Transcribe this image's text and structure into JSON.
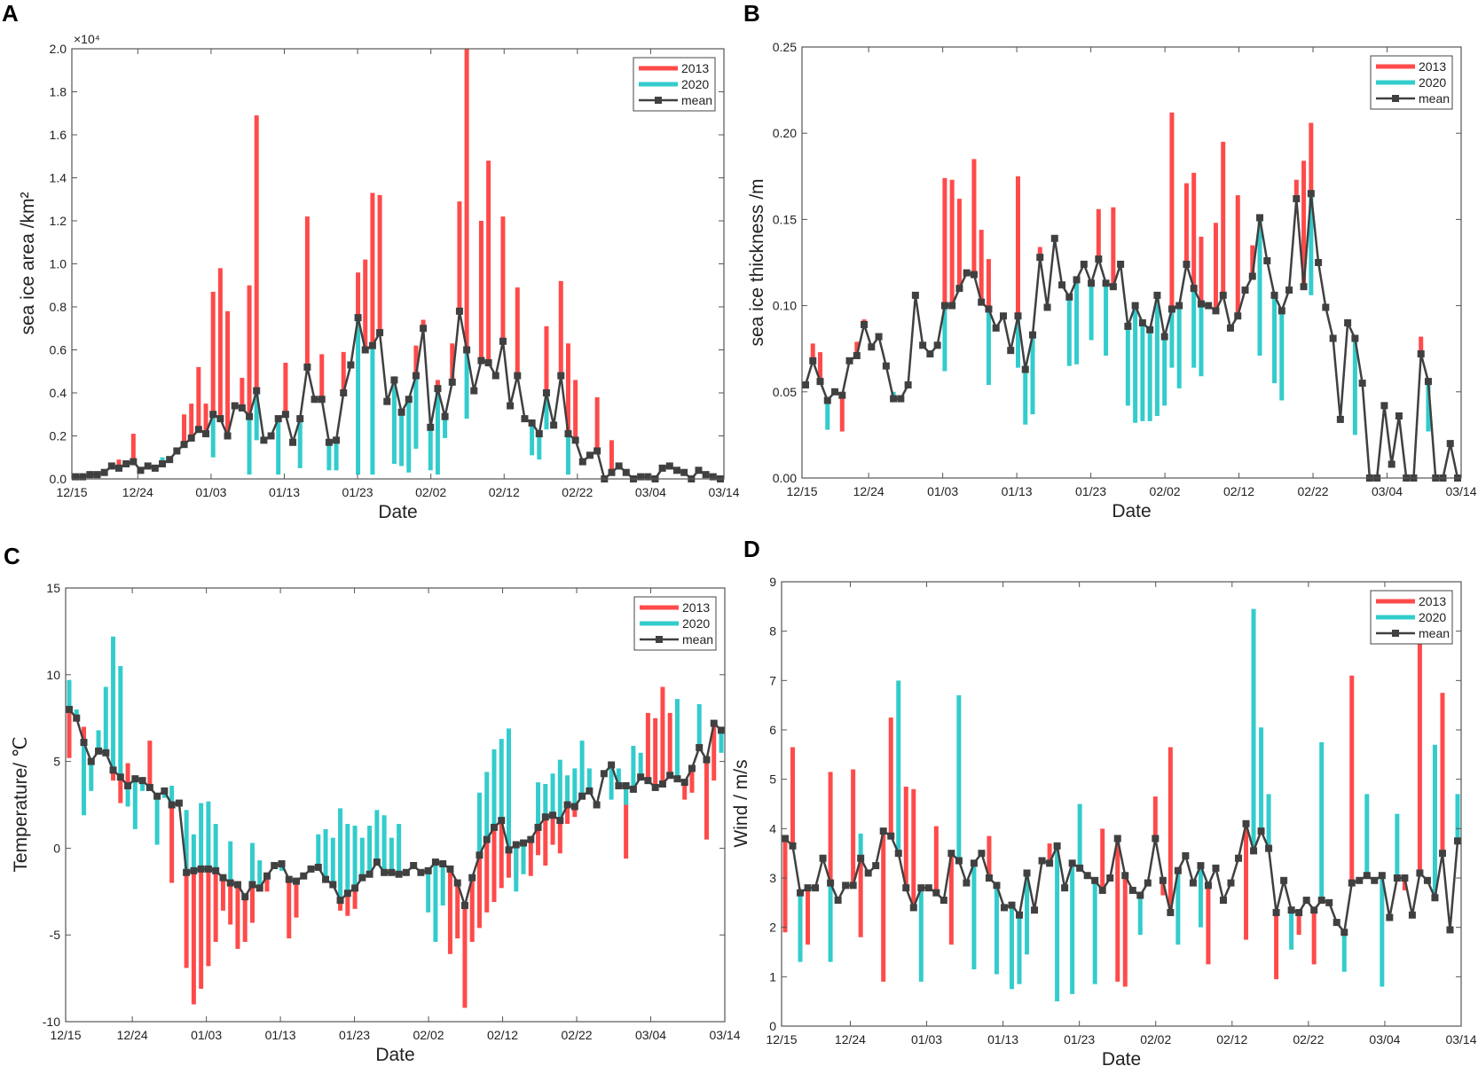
{
  "colors": {
    "y2013": "#ff4a4a",
    "y2020": "#33cccc",
    "mean": "#404040"
  },
  "chart_data": [
    {
      "panel": "A",
      "type": "bar+line",
      "title": "",
      "xlabel": "Date",
      "ylabel": "sea ice area /km²",
      "exponent_label": "×10⁴",
      "ylim": [
        0,
        2.0
      ],
      "yticks": [
        0,
        0.2,
        0.4,
        0.6,
        0.8,
        1.0,
        1.2,
        1.4,
        1.6,
        1.8,
        2.0
      ],
      "ytick_labels": [
        "0.0",
        "0.2",
        "0.4",
        "0.6",
        "0.8",
        "1.0",
        "1.2",
        "1.4",
        "1.6",
        "1.8",
        "2.0"
      ],
      "xtick_labels": [
        "12/15",
        "12/24",
        "01/03",
        "01/13",
        "01/23",
        "02/02",
        "02/12",
        "02/22",
        "03/04",
        "03/14"
      ],
      "xtick_days": [
        0,
        9,
        19,
        29,
        39,
        49,
        59,
        69,
        79,
        89
      ],
      "legend": [
        "2013",
        "2020",
        "mean"
      ],
      "legend_position": "top-right",
      "mean": [
        0.01,
        0.01,
        0.02,
        0.02,
        0.03,
        0.06,
        0.05,
        0.07,
        0.08,
        0.04,
        0.06,
        0.05,
        0.07,
        0.09,
        0.13,
        0.16,
        0.19,
        0.23,
        0.21,
        0.3,
        0.28,
        0.2,
        0.34,
        0.33,
        0.29,
        0.41,
        0.18,
        0.2,
        0.28,
        0.3,
        0.17,
        0.28,
        0.52,
        0.37,
        0.37,
        0.17,
        0.18,
        0.4,
        0.53,
        0.75,
        0.6,
        0.62,
        0.68,
        0.36,
        0.46,
        0.31,
        0.37,
        0.48,
        0.7,
        0.24,
        0.42,
        0.29,
        0.45,
        0.78,
        0.6,
        0.41,
        0.55,
        0.54,
        0.48,
        0.64,
        0.34,
        0.48,
        0.28,
        0.26,
        0.21,
        0.4,
        0.25,
        0.48,
        0.21,
        0.18,
        0.08,
        0.11,
        0.13,
        0.0,
        0.03,
        0.06,
        0.03,
        0.0,
        0.01,
        0.01,
        0.0,
        0.05,
        0.06,
        0.04,
        0.03,
        0.0,
        0.04,
        0.02,
        0.01,
        0.0
      ],
      "y2013": {
        "6": 0.09,
        "8": 0.21,
        "15": 0.3,
        "16": 0.35,
        "17": 0.52,
        "18": 0.35,
        "19": 0.87,
        "20": 0.98,
        "21": 0.78,
        "23": 0.47,
        "24": 0.9,
        "25": 1.69,
        "29": 0.54,
        "32": 1.22,
        "34": 0.58,
        "37": 0.59,
        "39": 0.96,
        "40": 1.02,
        "41": 1.33,
        "42": 1.32,
        "47": 0.62,
        "48": 0.74,
        "50": 0.46,
        "52": 0.63,
        "53": 1.29,
        "54": 2.0,
        "56": 1.2,
        "57": 1.48,
        "59": 1.22,
        "61": 0.89,
        "65": 0.71,
        "67": 0.92,
        "68": 0.63,
        "69": 0.46,
        "72": 0.38,
        "74": 0.18
      },
      "y2020": {
        "12": 0.1,
        "19": 0.1,
        "24": 0.02,
        "25": 0.18,
        "28": 0.02,
        "31": 0.05,
        "35": 0.04,
        "36": 0.04,
        "39": 0.02,
        "41": 0.02,
        "44": 0.07,
        "45": 0.06,
        "46": 0.03,
        "47": 0.14,
        "49": 0.04,
        "50": 0.02,
        "51": 0.19,
        "54": 0.28,
        "63": 0.11,
        "64": 0.09,
        "65": 0.23,
        "68": 0.02
      }
    },
    {
      "panel": "B",
      "type": "bar+line",
      "title": "",
      "xlabel": "Date",
      "ylabel": "sea ice thickness /m",
      "ylim": [
        0,
        0.25
      ],
      "yticks": [
        0,
        0.05,
        0.1,
        0.15,
        0.2,
        0.25
      ],
      "ytick_labels": [
        "0.00",
        "0.05",
        "0.10",
        "0.15",
        "0.20",
        "0.25"
      ],
      "xtick_labels": [
        "12/15",
        "12/24",
        "01/03",
        "01/13",
        "01/23",
        "02/02",
        "02/12",
        "02/22",
        "03/04",
        "03/14"
      ],
      "xtick_days": [
        0,
        9,
        19,
        29,
        39,
        49,
        59,
        69,
        79,
        89
      ],
      "legend": [
        "2013",
        "2020",
        "mean"
      ],
      "legend_position": "top-right",
      "mean": [
        0.054,
        0.068,
        0.056,
        0.045,
        0.05,
        0.048,
        0.068,
        0.071,
        0.089,
        0.076,
        0.082,
        0.065,
        0.046,
        0.046,
        0.054,
        0.106,
        0.077,
        0.072,
        0.077,
        0.1,
        0.1,
        0.11,
        0.119,
        0.118,
        0.102,
        0.098,
        0.087,
        0.094,
        0.074,
        0.094,
        0.063,
        0.083,
        0.128,
        0.099,
        0.139,
        0.112,
        0.105,
        0.115,
        0.124,
        0.113,
        0.127,
        0.113,
        0.111,
        0.124,
        0.088,
        0.1,
        0.09,
        0.086,
        0.106,
        0.082,
        0.098,
        0.1,
        0.124,
        0.11,
        0.101,
        0.1,
        0.097,
        0.106,
        0.087,
        0.094,
        0.109,
        0.117,
        0.151,
        0.126,
        0.106,
        0.097,
        0.109,
        0.162,
        0.111,
        0.165,
        0.125,
        0.099,
        0.081,
        0.034,
        0.09,
        0.081,
        0.055,
        0.0,
        0.0,
        0.042,
        0.008,
        0.036,
        0.0,
        0.0,
        0.072,
        0.056,
        0.0,
        0.0,
        0.02,
        0.0
      ],
      "y2013": {
        "1": 0.078,
        "2": 0.073,
        "5": 0.027,
        "7": 0.079,
        "8": 0.092,
        "19": 0.174,
        "20": 0.173,
        "21": 0.162,
        "23": 0.185,
        "24": 0.144,
        "25": 0.127,
        "29": 0.175,
        "32": 0.134,
        "40": 0.156,
        "42": 0.157,
        "50": 0.212,
        "52": 0.171,
        "53": 0.177,
        "54": 0.14,
        "56": 0.148,
        "57": 0.195,
        "59": 0.164,
        "61": 0.135,
        "67": 0.173,
        "68": 0.184,
        "69": 0.206,
        "84": 0.082
      },
      "y2020": {
        "3": 0.028,
        "12": 0.05,
        "19": 0.062,
        "25": 0.054,
        "29": 0.064,
        "30": 0.031,
        "31": 0.037,
        "36": 0.065,
        "37": 0.066,
        "39": 0.08,
        "41": 0.071,
        "44": 0.042,
        "45": 0.032,
        "46": 0.033,
        "47": 0.033,
        "48": 0.036,
        "49": 0.042,
        "50": 0.064,
        "51": 0.052,
        "53": 0.064,
        "54": 0.059,
        "62": 0.071,
        "64": 0.055,
        "65": 0.045,
        "69": 0.106,
        "75": 0.025,
        "85": 0.027
      }
    },
    {
      "panel": "C",
      "type": "bar+line",
      "title": "",
      "xlabel": "Date",
      "ylabel": "Temperature/ ℃",
      "ylim": [
        -10,
        15
      ],
      "yticks": [
        -10,
        -5,
        0,
        5,
        10,
        15
      ],
      "ytick_labels": [
        "-10",
        "-5",
        "0",
        "5",
        "10",
        "15"
      ],
      "xtick_labels": [
        "12/15",
        "12/24",
        "01/03",
        "01/13",
        "01/23",
        "02/02",
        "02/12",
        "02/22",
        "03/04",
        "03/14"
      ],
      "xtick_days": [
        0,
        9,
        19,
        29,
        39,
        49,
        59,
        69,
        79,
        89
      ],
      "legend": [
        "2013",
        "2020",
        "mean"
      ],
      "legend_position": "top-right",
      "mean": [
        8.0,
        7.5,
        6.1,
        5.0,
        5.6,
        5.5,
        4.5,
        4.1,
        3.6,
        4.0,
        3.9,
        3.5,
        3.0,
        3.3,
        2.5,
        2.6,
        -1.4,
        -1.3,
        -1.2,
        -1.2,
        -1.3,
        -1.7,
        -2.0,
        -2.1,
        -2.8,
        -2.1,
        -2.3,
        -1.6,
        -1.0,
        -0.9,
        -1.8,
        -1.9,
        -1.6,
        -1.2,
        -1.1,
        -1.8,
        -2.1,
        -3.0,
        -2.6,
        -2.3,
        -1.7,
        -1.5,
        -0.8,
        -1.4,
        -1.4,
        -1.5,
        -1.4,
        -1.0,
        -1.4,
        -1.3,
        -0.8,
        -0.9,
        -1.2,
        -2.0,
        -3.3,
        -1.7,
        -0.4,
        0.5,
        1.2,
        1.6,
        -0.1,
        0.2,
        0.3,
        0.5,
        1.2,
        1.8,
        1.9,
        1.6,
        2.5,
        2.4,
        3.0,
        3.3,
        2.5,
        4.3,
        4.8,
        3.6,
        3.6,
        3.4,
        4.1,
        3.9,
        3.5,
        3.7,
        4.2,
        4.0,
        3.8,
        4.6,
        5.8,
        5.1,
        7.2,
        6.8
      ],
      "y2013": {
        "0": 5.2,
        "2": 7.0,
        "6": 3.9,
        "7": 2.6,
        "8": 4.9,
        "11": 6.2,
        "14": -2.0,
        "16": -6.9,
        "17": -9.0,
        "18": -8.1,
        "19": -6.8,
        "20": -5.4,
        "21": -3.6,
        "22": -4.4,
        "23": -5.8,
        "24": -5.4,
        "25": -4.3,
        "27": -2.5,
        "30": -5.2,
        "31": -4.0,
        "37": -3.6,
        "38": -3.9,
        "39": -3.5,
        "52": -6.1,
        "53": -5.2,
        "54": -9.2,
        "55": -5.4,
        "56": -4.6,
        "57": -3.7,
        "58": -3.1,
        "59": -2.3,
        "60": -1.7,
        "61": -1.8,
        "62": -1.3,
        "63": -1.6,
        "64": -0.4,
        "65": -1.0,
        "66": 0.2,
        "67": -0.3,
        "68": 1.4,
        "69": 1.8,
        "76": -0.6,
        "79": 7.8,
        "80": 7.5,
        "81": 9.3,
        "82": 7.8,
        "84": 2.8,
        "85": 3.2,
        "87": 0.5,
        "88": 3.9
      },
      "y2020": {
        "0": 9.7,
        "1": 8.0,
        "2": 1.9,
        "3": 3.3,
        "4": 6.8,
        "5": 9.3,
        "6": 12.2,
        "7": 10.5,
        "8": 2.4,
        "9": 1.1,
        "10": 3.3,
        "12": 0.2,
        "13": 2.9,
        "14": 3.6,
        "16": 2.2,
        "17": 0.8,
        "18": 2.6,
        "19": 2.7,
        "20": 1.4,
        "22": 0.4,
        "25": 0.3,
        "26": -0.7,
        "29": -1.3,
        "34": 0.8,
        "35": 1.1,
        "36": 0.6,
        "37": 2.3,
        "38": 1.4,
        "39": 1.3,
        "40": 0.6,
        "41": 1.3,
        "42": 2.2,
        "43": 1.9,
        "44": 0.6,
        "45": 1.4,
        "49": -3.7,
        "50": -5.4,
        "51": -3.3,
        "56": 3.2,
        "57": 4.4,
        "58": 5.7,
        "59": 6.3,
        "60": 6.9,
        "61": -2.5,
        "62": -1.5,
        "64": 3.8,
        "65": 3.7,
        "66": 4.3,
        "67": 5.1,
        "68": 4.2,
        "69": 4.6,
        "70": 6.2,
        "71": 4.6,
        "74": 2.8,
        "75": 4.6,
        "76": 2.5,
        "77": 5.9,
        "78": 5.5,
        "83": 8.6,
        "86": 8.3,
        "89": 5.5
      }
    },
    {
      "panel": "D",
      "type": "bar+line",
      "title": "",
      "xlabel": "Date",
      "ylabel": "Wind / m/s",
      "ylim": [
        0,
        9
      ],
      "yticks": [
        0,
        1,
        2,
        3,
        4,
        5,
        6,
        7,
        8,
        9
      ],
      "ytick_labels": [
        "0",
        "1",
        "2",
        "3",
        "4",
        "5",
        "6",
        "7",
        "8",
        "9"
      ],
      "xtick_labels": [
        "12/15",
        "12/24",
        "01/03",
        "01/13",
        "01/23",
        "02/02",
        "02/12",
        "02/22",
        "03/04",
        "03/14"
      ],
      "xtick_days": [
        0,
        9,
        19,
        29,
        39,
        49,
        59,
        69,
        79,
        89
      ],
      "legend": [
        "2013",
        "2020",
        "mean"
      ],
      "legend_position": "top-right",
      "mean": [
        3.8,
        3.65,
        2.7,
        2.8,
        2.8,
        3.4,
        2.9,
        2.55,
        2.85,
        2.85,
        3.4,
        3.1,
        3.25,
        3.95,
        3.85,
        3.5,
        2.8,
        2.4,
        2.8,
        2.8,
        2.7,
        2.55,
        3.5,
        3.35,
        2.9,
        3.3,
        3.5,
        3.0,
        2.85,
        2.4,
        2.45,
        2.25,
        3.1,
        2.35,
        3.35,
        3.3,
        3.65,
        2.8,
        3.3,
        3.2,
        3.05,
        2.95,
        2.75,
        3.0,
        3.8,
        3.05,
        2.75,
        2.65,
        2.9,
        3.8,
        2.95,
        2.3,
        3.15,
        3.45,
        2.9,
        3.25,
        2.85,
        3.2,
        2.55,
        2.9,
        3.4,
        4.1,
        3.55,
        3.95,
        3.6,
        2.3,
        2.95,
        2.35,
        2.3,
        2.55,
        2.35,
        2.55,
        2.5,
        2.1,
        1.9,
        2.9,
        2.95,
        3.05,
        2.95,
        3.05,
        2.2,
        3.0,
        3.0,
        2.25,
        3.1,
        2.95,
        2.6,
        3.5,
        1.95,
        3.75
      ],
      "y2013": {
        "0": 1.9,
        "1": 5.65,
        "3": 1.65,
        "6": 5.15,
        "9": 5.2,
        "10": 1.8,
        "13": 0.9,
        "14": 6.25,
        "16": 4.85,
        "17": 4.8,
        "20": 4.05,
        "22": 1.65,
        "27": 3.85,
        "35": 3.7,
        "42": 4.0,
        "44": 0.9,
        "45": 0.8,
        "49": 4.65,
        "50": 2.65,
        "51": 5.65,
        "56": 1.25,
        "61": 1.75,
        "65": 0.95,
        "68": 1.85,
        "70": 1.25,
        "75": 7.1,
        "82": 2.75,
        "84": 8.05,
        "87": 6.75
      },
      "y2020": {
        "2": 1.3,
        "6": 1.3,
        "10": 3.9,
        "15": 7.0,
        "18": 0.9,
        "23": 6.7,
        "25": 1.15,
        "28": 1.05,
        "30": 0.75,
        "31": 0.85,
        "32": 1.45,
        "36": 0.5,
        "38": 0.65,
        "39": 4.5,
        "41": 0.85,
        "47": 1.85,
        "52": 1.65,
        "55": 2.0,
        "62": 8.45,
        "63": 6.05,
        "64": 4.7,
        "67": 1.55,
        "71": 5.75,
        "74": 1.1,
        "77": 4.7,
        "79": 0.8,
        "81": 4.3,
        "86": 5.7,
        "89": 4.7
      }
    }
  ]
}
